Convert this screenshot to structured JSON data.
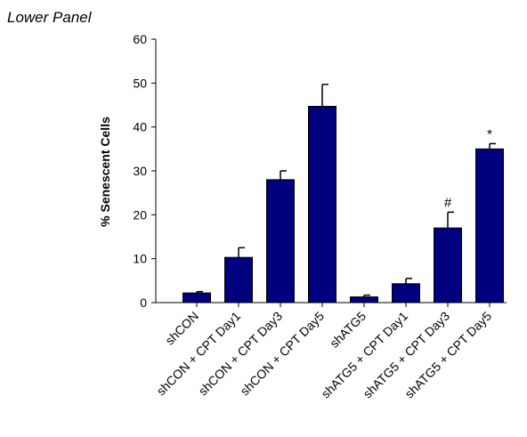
{
  "panel_label": "Lower Panel",
  "chart_data": {
    "type": "bar",
    "title": "",
    "xlabel": "",
    "ylabel": "% Senescent Cells",
    "ylim": [
      0,
      60
    ],
    "yticks": [
      0,
      10,
      20,
      30,
      40,
      50,
      60
    ],
    "grid": false,
    "categories": [
      "shCON",
      "shCON + CPT Day1",
      "shCON + CPT Day3",
      "shCON + CPT Day5",
      "shATG5",
      "shATG5 + CPT Day1",
      "shATG5 + CPT Day3",
      "shATG5 + CPT Day5"
    ],
    "values": [
      2.2,
      10.3,
      28.0,
      44.7,
      1.3,
      4.3,
      17.0,
      35.0
    ],
    "errors": [
      0.3,
      2.2,
      2.0,
      5.0,
      0.4,
      1.2,
      3.6,
      1.2
    ],
    "annotations": [
      "",
      "",
      "",
      "",
      "",
      "",
      "#",
      "*"
    ],
    "bar_color": "#00007f"
  }
}
